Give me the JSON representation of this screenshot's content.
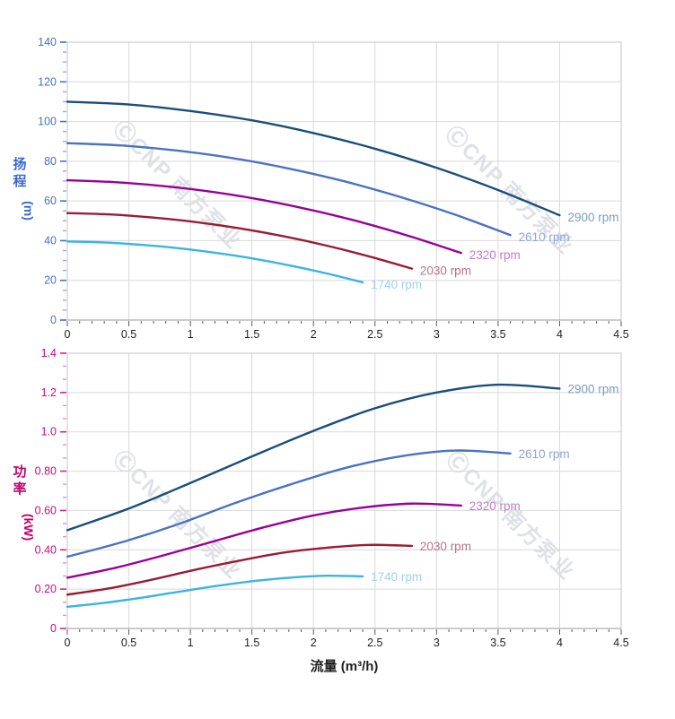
{
  "watermark": {
    "logo_glyph": "Ⓒ",
    "text": "CNP 南方泵业",
    "color": "#bdc3ce"
  },
  "palette": {
    "grid": "#d9d9d9",
    "plot_border": "#c6c6c6",
    "x_axis_line": "#9a9a9a",
    "x_tick": "#5a5a5a",
    "x_number": "#1f1f1f",
    "background": "#ffffff"
  },
  "chart_data": [
    {
      "name": "head-chart",
      "type": "line",
      "title": "",
      "xlabel": "",
      "ylabel": "扬程 (m)",
      "ylabel_chars": [
        "扬",
        "程"
      ],
      "ylabel_unit": "(m)",
      "xlim": [
        0,
        4.5
      ],
      "ylim": [
        0,
        140
      ],
      "x_minor_step": 0.1,
      "y_minor_step": 5,
      "x_ticks": [
        {
          "v": 0,
          "label": "0"
        },
        {
          "v": 0.5,
          "label": "0.5"
        },
        {
          "v": 1,
          "label": "1"
        },
        {
          "v": 1.5,
          "label": "1.5"
        },
        {
          "v": 2,
          "label": "2"
        },
        {
          "v": 2.5,
          "label": "2.5"
        },
        {
          "v": 3,
          "label": "3"
        },
        {
          "v": 3.5,
          "label": "3.5"
        },
        {
          "v": 4,
          "label": "4"
        },
        {
          "v": 4.5,
          "label": "4.5"
        }
      ],
      "y_ticks": [
        {
          "v": 0,
          "label": "0"
        },
        {
          "v": 20,
          "label": "20"
        },
        {
          "v": 40,
          "label": "40"
        },
        {
          "v": 60,
          "label": "60"
        },
        {
          "v": 80,
          "label": "80"
        },
        {
          "v": 100,
          "label": "100"
        },
        {
          "v": 120,
          "label": "120"
        },
        {
          "v": 140,
          "label": "140"
        }
      ],
      "axis": {
        "tick_color": "#4472c4",
        "minor_tick_color": "#93a9dc",
        "number_color": "#4472c4",
        "title_color": "#3b66d4"
      },
      "series": [
        {
          "name": "2900 rpm",
          "color": "#1b4e79",
          "label_color": "#7d9cbd",
          "points": [
            [
              0,
              110
            ],
            [
              0.5,
              108.6
            ],
            [
              1,
              105.3
            ],
            [
              1.5,
              100.6
            ],
            [
              2,
              94.2
            ],
            [
              2.5,
              86.3
            ],
            [
              3,
              76.7
            ],
            [
              3.5,
              65.5
            ],
            [
              4,
              52.8
            ]
          ]
        },
        {
          "name": "2610 rpm",
          "color": "#4a72c4",
          "label_color": "#8ca3dc",
          "points": [
            [
              0,
              89.1
            ],
            [
              0.45,
              87.9
            ],
            [
              0.9,
              85.3
            ],
            [
              1.35,
              81.5
            ],
            [
              1.8,
              76.3
            ],
            [
              2.25,
              69.9
            ],
            [
              2.7,
              62.1
            ],
            [
              3.15,
              53.1
            ],
            [
              3.6,
              42.8
            ]
          ]
        },
        {
          "name": "2320 rpm",
          "color": "#99009a",
          "label_color": "#c07cc9",
          "points": [
            [
              0,
              70.4
            ],
            [
              0.4,
              69.4
            ],
            [
              0.8,
              67.4
            ],
            [
              1.2,
              64.4
            ],
            [
              1.6,
              60.3
            ],
            [
              2,
              55.2
            ],
            [
              2.4,
              49.1
            ],
            [
              2.8,
              41.9
            ],
            [
              3.2,
              33.8
            ]
          ]
        },
        {
          "name": "2030 rpm",
          "color": "#9c1b33",
          "label_color": "#b8718c",
          "points": [
            [
              0,
              53.9
            ],
            [
              0.35,
              53.2
            ],
            [
              0.7,
              51.6
            ],
            [
              1.05,
              49.3
            ],
            [
              1.4,
              46.2
            ],
            [
              1.75,
              42.3
            ],
            [
              2.1,
              37.6
            ],
            [
              2.45,
              32.1
            ],
            [
              2.8,
              25.9
            ]
          ]
        },
        {
          "name": "1740 rpm",
          "color": "#39b4e6",
          "label_color": "#9ed2ef",
          "points": [
            [
              0,
              39.6
            ],
            [
              0.3,
              39.1
            ],
            [
              0.6,
              37.9
            ],
            [
              0.9,
              36.2
            ],
            [
              1.2,
              33.9
            ],
            [
              1.5,
              31.1
            ],
            [
              1.8,
              27.6
            ],
            [
              2.1,
              23.6
            ],
            [
              2.4,
              19.0
            ]
          ]
        }
      ]
    },
    {
      "name": "power-chart",
      "type": "line",
      "title": "",
      "xlabel": "流量 (m³/h)",
      "ylabel": "功率 (kW)",
      "ylabel_chars": [
        "功",
        "率"
      ],
      "ylabel_unit": "(kW)",
      "xlim": [
        0,
        4.5
      ],
      "ylim": [
        0,
        1.4
      ],
      "x_minor_step": 0.1,
      "y_minor_divisions": 3,
      "x_ticks": [
        {
          "v": 0,
          "label": "0"
        },
        {
          "v": 0.5,
          "label": "0.5"
        },
        {
          "v": 1,
          "label": "1"
        },
        {
          "v": 1.5,
          "label": "1.5"
        },
        {
          "v": 2,
          "label": "2"
        },
        {
          "v": 2.5,
          "label": "2.5"
        },
        {
          "v": 3,
          "label": "3"
        },
        {
          "v": 3.5,
          "label": "3.5"
        },
        {
          "v": 4,
          "label": "4"
        },
        {
          "v": 4.5,
          "label": "4.5"
        }
      ],
      "y_ticks": [
        {
          "v": 0,
          "label": "0"
        },
        {
          "v": 0.2,
          "label": "0.20"
        },
        {
          "v": 0.4,
          "label": "0.40"
        },
        {
          "v": 0.6,
          "label": "0.60"
        },
        {
          "v": 0.8,
          "label": "0.80"
        },
        {
          "v": 1.0,
          "label": "1.0"
        },
        {
          "v": 1.2,
          "label": "1.2"
        },
        {
          "v": 1.4,
          "label": "1.4"
        }
      ],
      "axis": {
        "tick_color": "#cf2a8a",
        "minor_tick_color": "#e393bf",
        "number_color": "#cf0a7a",
        "title_color": "#c4006e"
      },
      "series": [
        {
          "name": "2900 rpm",
          "color": "#1b4e79",
          "label_color": "#7d9cbd",
          "points": [
            [
              0,
              0.5
            ],
            [
              0.5,
              0.61
            ],
            [
              1,
              0.74
            ],
            [
              1.5,
              0.875
            ],
            [
              2,
              1.005
            ],
            [
              2.5,
              1.12
            ],
            [
              3,
              1.2
            ],
            [
              3.5,
              1.24
            ],
            [
              4,
              1.22
            ]
          ]
        },
        {
          "name": "2610 rpm",
          "color": "#4a72c4",
          "label_color": "#8ca3dc",
          "points": [
            [
              0,
              0.365
            ],
            [
              0.45,
              0.44
            ],
            [
              0.9,
              0.53
            ],
            [
              1.35,
              0.635
            ],
            [
              1.8,
              0.73
            ],
            [
              2.25,
              0.815
            ],
            [
              2.7,
              0.875
            ],
            [
              3.15,
              0.905
            ],
            [
              3.6,
              0.89
            ]
          ]
        },
        {
          "name": "2320 rpm",
          "color": "#99009a",
          "label_color": "#c07cc9",
          "points": [
            [
              0,
              0.258
            ],
            [
              0.4,
              0.31
            ],
            [
              0.8,
              0.375
            ],
            [
              1.2,
              0.445
            ],
            [
              1.6,
              0.515
            ],
            [
              2,
              0.575
            ],
            [
              2.4,
              0.615
            ],
            [
              2.8,
              0.635
            ],
            [
              3.2,
              0.625
            ]
          ]
        },
        {
          "name": "2030 rpm",
          "color": "#9c1b33",
          "label_color": "#b8718c",
          "points": [
            [
              0,
              0.172
            ],
            [
              0.35,
              0.205
            ],
            [
              0.7,
              0.25
            ],
            [
              1.05,
              0.3
            ],
            [
              1.4,
              0.345
            ],
            [
              1.75,
              0.385
            ],
            [
              2.1,
              0.41
            ],
            [
              2.45,
              0.425
            ],
            [
              2.8,
              0.42
            ]
          ]
        },
        {
          "name": "1740 rpm",
          "color": "#39b4e6",
          "label_color": "#9ed2ef",
          "points": [
            [
              0,
              0.11
            ],
            [
              0.3,
              0.13
            ],
            [
              0.6,
              0.156
            ],
            [
              0.9,
              0.186
            ],
            [
              1.2,
              0.215
            ],
            [
              1.5,
              0.24
            ],
            [
              1.8,
              0.258
            ],
            [
              2.1,
              0.268
            ],
            [
              2.4,
              0.265
            ]
          ]
        }
      ]
    }
  ]
}
